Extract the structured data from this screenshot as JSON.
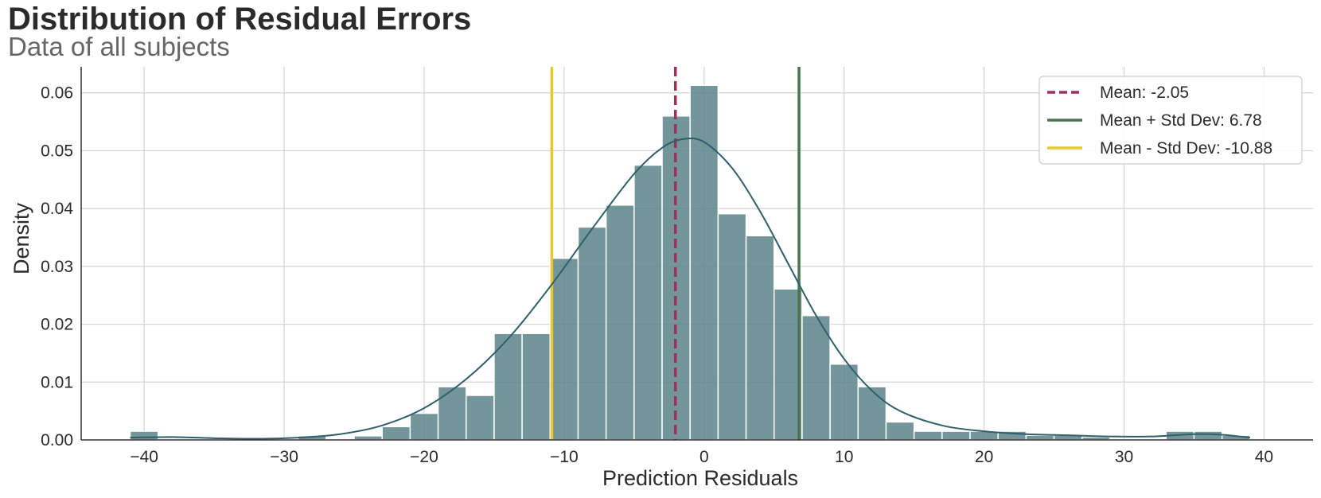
{
  "chart_data": {
    "type": "bar",
    "title": "Distribution of Residual Errors",
    "subtitle": "Data of all subjects",
    "xlabel": "Prediction Residuals",
    "ylabel": "Density",
    "xlim": [
      -44.5,
      43.5
    ],
    "ylim": [
      0,
      0.0645
    ],
    "xticks": [
      -40,
      -30,
      -20,
      -10,
      0,
      10,
      20,
      30,
      40
    ],
    "xtick_labels": [
      "−40",
      "−30",
      "−20",
      "−10",
      "0",
      "10",
      "20",
      "30",
      "40"
    ],
    "yticks": [
      0,
      0.01,
      0.02,
      0.03,
      0.04,
      0.05,
      0.06
    ],
    "ytick_labels": [
      "0.00",
      "0.01",
      "0.02",
      "0.03",
      "0.04",
      "0.05",
      "0.06"
    ],
    "grid": true,
    "legend_placement": "top-right",
    "bin_edges": [
      -41,
      -39,
      -37,
      -35,
      -33,
      -31,
      -29,
      -27,
      -25,
      -23,
      -21,
      -19,
      -17,
      -15,
      -13,
      -11,
      -9,
      -7,
      -5,
      -3,
      -1,
      1,
      3,
      5,
      7,
      9,
      11,
      13,
      15,
      17,
      19,
      21,
      23,
      25,
      27,
      29,
      31,
      33,
      35,
      37,
      39
    ],
    "density": [
      0.0015,
      0.0,
      0.0,
      0.0,
      0.0,
      0.0,
      0.0007,
      0.0,
      0.0007,
      0.0023,
      0.0046,
      0.0092,
      0.0077,
      0.0184,
      0.0184,
      0.0314,
      0.0368,
      0.0406,
      0.0475,
      0.056,
      0.0613,
      0.0391,
      0.0353,
      0.0261,
      0.0215,
      0.0131,
      0.0092,
      0.0031,
      0.0015,
      0.0015,
      0.0015,
      0.0015,
      0.0008,
      0.0008,
      0.0005,
      0.0,
      0.0,
      0.0015,
      0.0015,
      0.0008
    ],
    "kde": {
      "x": [
        -41,
        -38,
        -35,
        -32,
        -29,
        -26,
        -23,
        -20,
        -17,
        -14,
        -11,
        -8,
        -5,
        -3,
        -1.5,
        0,
        2,
        4,
        6,
        8,
        10,
        12,
        14,
        17,
        20,
        23,
        26,
        29,
        32,
        35,
        37,
        39
      ],
      "y": [
        0.0004,
        0.0005,
        0.0003,
        0.0002,
        0.0004,
        0.001,
        0.0025,
        0.0055,
        0.0105,
        0.0175,
        0.0265,
        0.0365,
        0.046,
        0.0505,
        0.052,
        0.0515,
        0.047,
        0.0395,
        0.0305,
        0.0215,
        0.014,
        0.0085,
        0.005,
        0.0025,
        0.0015,
        0.001,
        0.0008,
        0.0006,
        0.0006,
        0.001,
        0.0009,
        0.0004
      ]
    },
    "lines": [
      {
        "name": "Mean: -2.05",
        "x": -2.05,
        "style": "dashed",
        "color": "#9e3060"
      },
      {
        "name": "Mean + Std Dev: 6.78",
        "x": 6.78,
        "style": "solid",
        "color": "#4a7550"
      },
      {
        "name": "Mean - Std Dev: -10.88",
        "x": -10.88,
        "style": "solid",
        "color": "#e8c832"
      }
    ],
    "colors": {
      "bar_fill": "#5a8489",
      "bar_stroke": "#ffffff",
      "kde": "#2f5f6b"
    }
  }
}
